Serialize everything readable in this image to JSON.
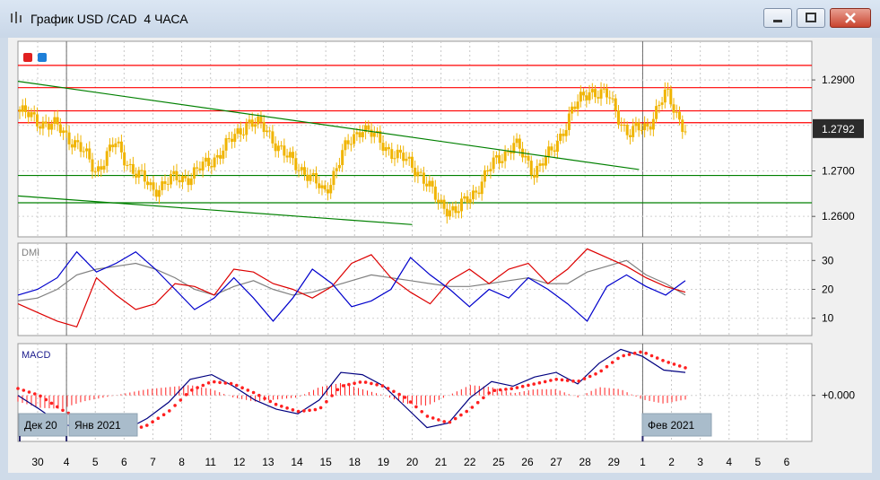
{
  "window": {
    "title": "График USD /CAD  4 ЧАСА",
    "buttons": [
      "minimize",
      "maximize",
      "close"
    ]
  },
  "panels": {
    "dmi_label": "DMI",
    "macd_label": "MACD"
  },
  "price_label": "1.2792",
  "chart_data": [
    {
      "type": "candlestick",
      "symbol": "USD/CAD",
      "timeframe": "4 ЧАСА",
      "y_ticks": [
        "1.2900",
        "1.2700",
        "1.2600"
      ],
      "ylim": [
        1.2555,
        1.2985
      ],
      "last_price": 1.2792,
      "horizontal_lines": [
        {
          "price": 1.2932,
          "color": "#ff0000"
        },
        {
          "price": 1.2883,
          "color": "#ff0000"
        },
        {
          "price": 1.2832,
          "color": "#ff0000"
        },
        {
          "price": 1.2806,
          "color": "#ff0000"
        },
        {
          "price": 1.269,
          "color": "#008000"
        },
        {
          "price": 1.263,
          "color": "#008000"
        }
      ],
      "trend_lines": [
        {
          "color": "#008000",
          "from": [
            "30",
            1.2897
          ],
          "to": [
            "1",
            1.2703
          ]
        },
        {
          "color": "#008000",
          "from": [
            "30",
            1.2645
          ],
          "to": [
            "20",
            1.2582
          ]
        }
      ],
      "candle_color": "#f0b400",
      "close_path": [
        [
          "30",
          1.283
        ],
        [
          "30",
          1.281
        ],
        [
          "4",
          1.2795
        ],
        [
          "4",
          1.276
        ],
        [
          "5",
          1.27
        ],
        [
          "5",
          1.276
        ],
        [
          "6",
          1.27
        ],
        [
          "6",
          1.266
        ],
        [
          "7",
          1.268
        ],
        [
          "8",
          1.269
        ],
        [
          "8",
          1.272
        ],
        [
          "11",
          1.276
        ],
        [
          "12",
          1.281
        ],
        [
          "12",
          1.279
        ],
        [
          "13",
          1.273
        ],
        [
          "14",
          1.27
        ],
        [
          "15",
          1.265
        ],
        [
          "16",
          1.274
        ],
        [
          "18",
          1.28
        ],
        [
          "19",
          1.276
        ],
        [
          "20",
          1.273
        ],
        [
          "20",
          1.27
        ],
        [
          "21",
          1.263
        ],
        [
          "22",
          1.261
        ],
        [
          "22",
          1.266
        ],
        [
          "25",
          1.272
        ],
        [
          "26",
          1.276
        ],
        [
          "27",
          1.27
        ],
        [
          "27",
          1.274
        ],
        [
          "28",
          1.283
        ],
        [
          "28",
          1.288
        ],
        [
          "29",
          1.286
        ],
        [
          "29",
          1.278
        ],
        [
          "1",
          1.28
        ],
        [
          "2",
          1.287
        ],
        [
          "2",
          1.2792
        ]
      ]
    },
    {
      "type": "line",
      "name": "DMI",
      "y_ticks": [
        "30",
        "20",
        "10"
      ],
      "ylim": [
        4,
        36
      ],
      "series": [
        {
          "color": "#0000cc",
          "values": [
            18,
            20,
            24,
            33,
            26,
            29,
            33,
            27,
            20,
            13,
            17,
            24,
            17,
            9,
            17,
            27,
            22,
            14,
            16,
            20,
            31,
            25,
            20,
            14,
            20,
            17,
            24,
            20,
            15,
            9,
            21,
            25,
            21,
            18,
            23
          ]
        },
        {
          "color": "#dd0000",
          "values": [
            15,
            12,
            9,
            7,
            24,
            18,
            13,
            15,
            22,
            21,
            18,
            27,
            26,
            22,
            20,
            17,
            21,
            29,
            32,
            24,
            19,
            15,
            23,
            27,
            22,
            27,
            29,
            22,
            27,
            34,
            31,
            28,
            24,
            21,
            19
          ]
        },
        {
          "color": "#808080",
          "values": [
            16,
            17,
            20,
            25,
            27,
            28,
            29,
            27,
            24,
            20,
            18,
            21,
            23,
            20,
            18,
            19,
            21,
            23,
            25,
            24,
            23,
            22,
            21,
            21,
            22,
            23,
            24,
            22,
            22,
            26,
            28,
            30,
            25,
            22,
            18
          ]
        }
      ]
    },
    {
      "type": "line",
      "name": "MACD",
      "y_ticks": [
        "+0.000"
      ],
      "ylim": [
        -0.004,
        0.0045
      ],
      "series": [
        {
          "color": "#000080",
          "values": [
            0.0,
            -0.0012,
            -0.0025,
            -0.0028,
            -0.0032,
            -0.003,
            -0.002,
            -0.0006,
            0.0014,
            0.0018,
            0.0008,
            -0.0004,
            -0.0012,
            -0.0016,
            -0.0004,
            0.002,
            0.0018,
            0.0008,
            -0.001,
            -0.0028,
            -0.0024,
            -0.0002,
            0.0012,
            0.0008,
            0.0016,
            0.002,
            0.001,
            0.0028,
            0.004,
            0.0034,
            0.0022,
            0.002
          ]
        },
        {
          "color": "#ff2020",
          "dotted": true,
          "values": [
            0.0006,
            0.0,
            -0.0012,
            -0.0022,
            -0.003,
            -0.0032,
            -0.0026,
            -0.0014,
            0.0004,
            0.0012,
            0.001,
            0.0002,
            -0.0008,
            -0.0014,
            -0.0012,
            0.0008,
            0.0012,
            0.0008,
            -0.0002,
            -0.0018,
            -0.0024,
            -0.0012,
            0.0004,
            0.0006,
            0.001,
            0.0014,
            0.0012,
            0.002,
            0.0034,
            0.0038,
            0.003,
            0.0024
          ]
        },
        {
          "color": "#ff2020",
          "type": "histogram"
        }
      ],
      "period_labels": [
        "Дек 20",
        "Янв 2021",
        "Фев 2021"
      ]
    }
  ],
  "x_axis": {
    "ticks": [
      "30",
      "4",
      "5",
      "6",
      "7",
      "8",
      "11",
      "12",
      "13",
      "14",
      "15",
      "18",
      "19",
      "20",
      "21",
      "22",
      "25",
      "26",
      "27",
      "28",
      "29",
      "1",
      "2",
      "3",
      "4",
      "5",
      "6"
    ]
  }
}
